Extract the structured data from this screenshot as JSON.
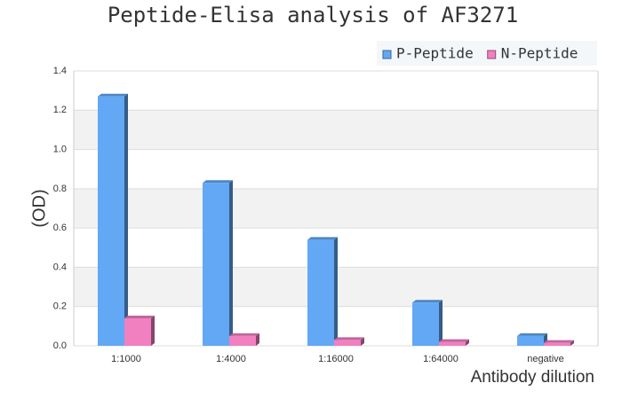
{
  "chart_data": {
    "type": "bar",
    "title": "Peptide-Elisa analysis of AF3271",
    "x_label": "Antibody dilution",
    "y_label": "(OD)",
    "categories": [
      "1:1000",
      "1:4000",
      "1:16000",
      "1:64000",
      "negative"
    ],
    "series": [
      {
        "name": "P-Peptide",
        "color": "#62a8f5",
        "values": [
          1.27,
          0.83,
          0.54,
          0.22,
          0.05
        ]
      },
      {
        "name": "N-Peptide",
        "color": "#f080c0",
        "values": [
          0.14,
          0.05,
          0.03,
          0.02,
          0.015
        ]
      }
    ],
    "ylim": [
      0,
      1.4
    ],
    "yticks": [
      {
        "value": 0,
        "label": "0.0"
      },
      0.2,
      0.4,
      0.6,
      0.8,
      {
        "value": 1,
        "label": "1.0"
      },
      1.2,
      1.4
    ],
    "grid": true,
    "legend": "top-right"
  }
}
